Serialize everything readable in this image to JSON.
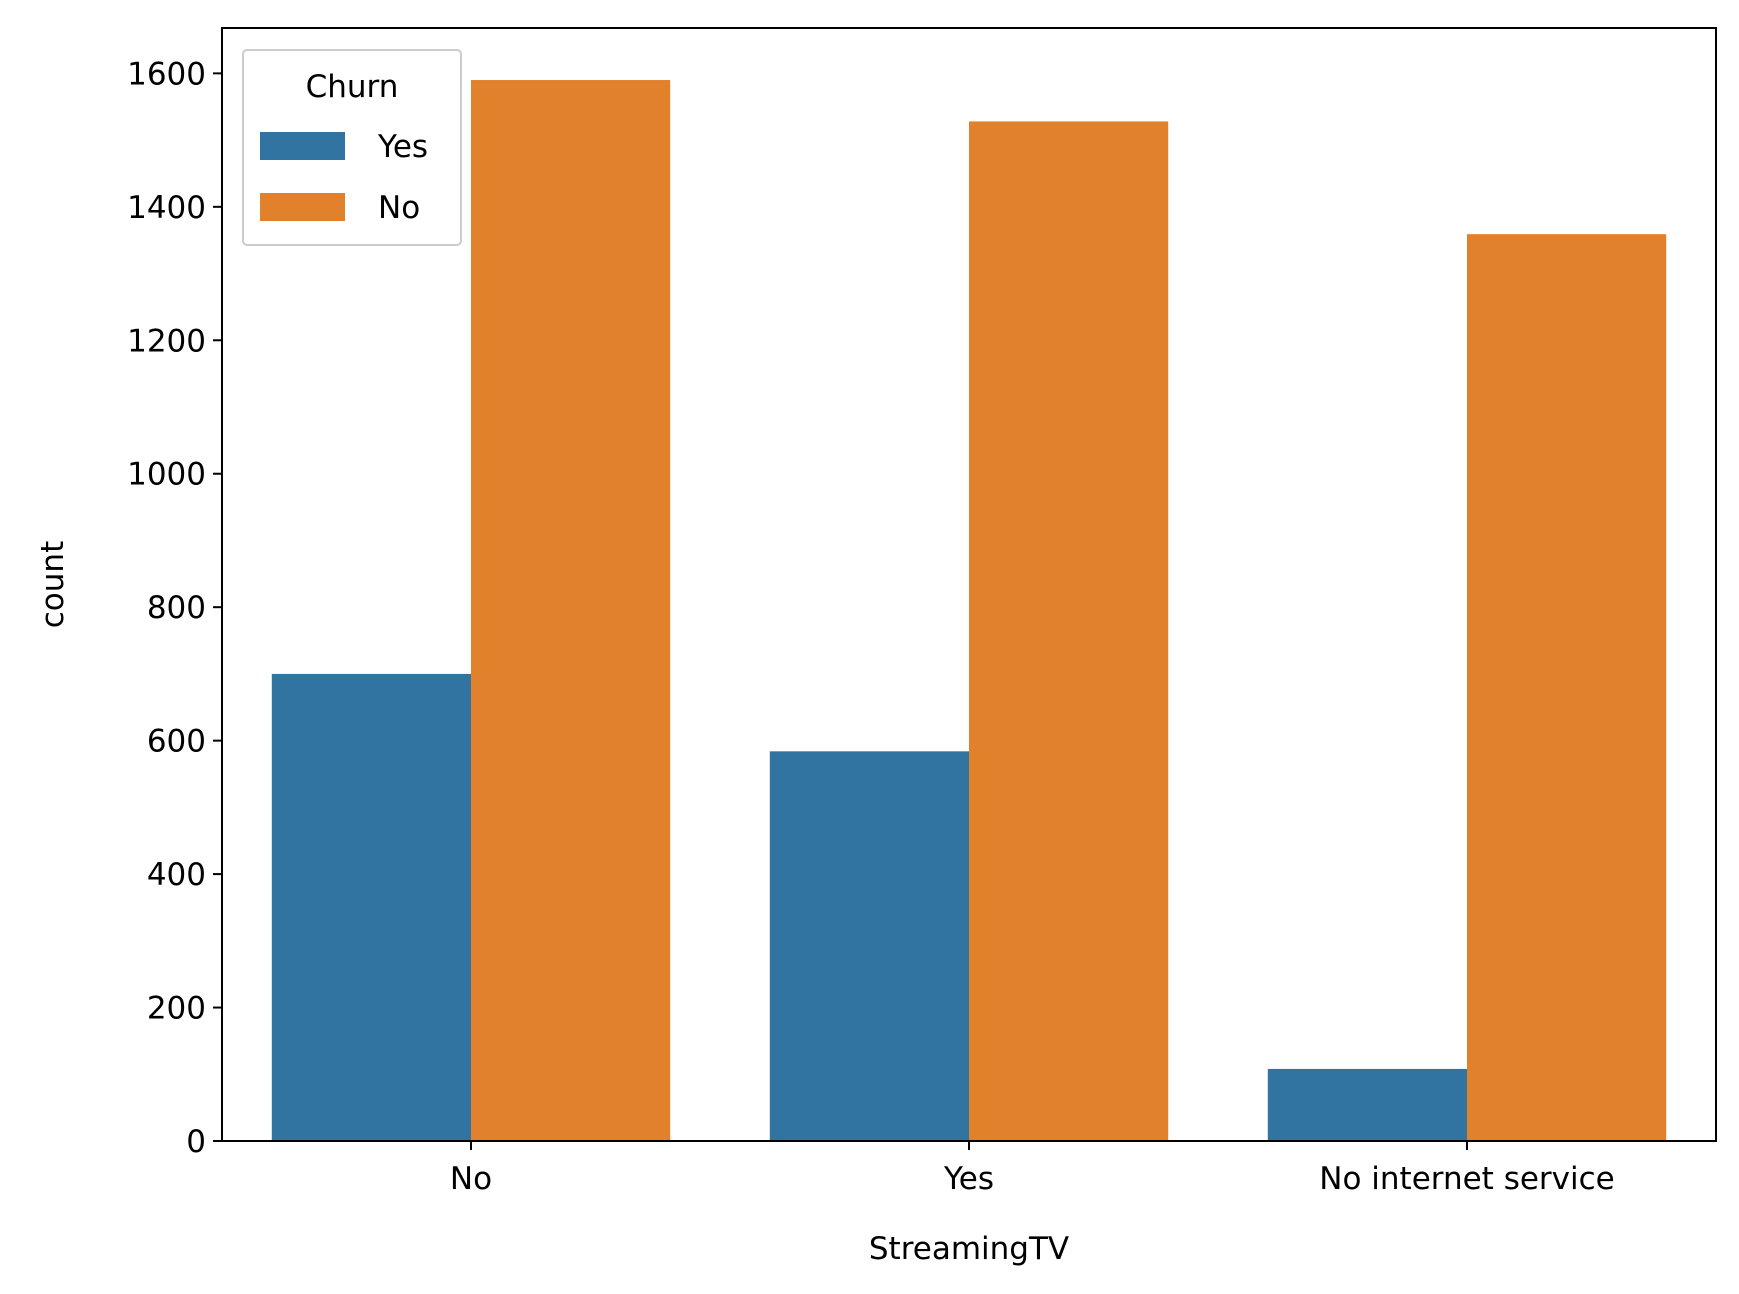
{
  "chart_data": {
    "type": "bar",
    "xlabel": "StreamingTV",
    "ylabel": "count",
    "categories": [
      "No",
      "Yes",
      "No internet service"
    ],
    "series": [
      {
        "name": "Yes",
        "values": [
          700,
          584,
          108
        ],
        "color": "#3274a1"
      },
      {
        "name": "No",
        "values": [
          1590,
          1528,
          1359
        ],
        "color": "#e1812c"
      }
    ],
    "ylim": [
      0,
      1668
    ],
    "yticks": [
      0,
      200,
      400,
      600,
      800,
      1000,
      1200,
      1400,
      1600
    ],
    "legend": {
      "title": "Churn",
      "location": "top-left"
    },
    "grid": false
  }
}
